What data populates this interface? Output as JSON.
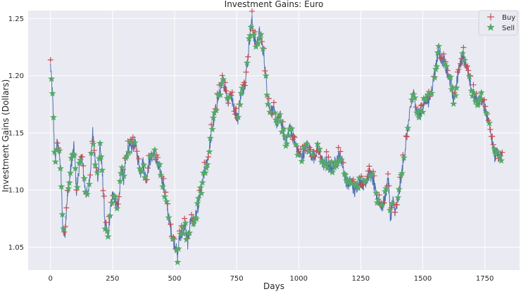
{
  "chart_data": {
    "type": "line",
    "title": "Investment Gains:  Euro",
    "xlabel": "Days",
    "ylabel": "Investment Gains (Dollars)",
    "xlim": [
      -90,
      1890
    ],
    "ylim": [
      1.03,
      1.257
    ],
    "xticks": [
      0,
      250,
      500,
      750,
      1000,
      1250,
      1500,
      1750
    ],
    "xtick_labels": [
      "0",
      "250",
      "500",
      "750",
      "1000",
      "1250",
      "1500",
      "1750"
    ],
    "yticks": [
      1.05,
      1.1,
      1.15,
      1.2,
      1.25
    ],
    "ytick_labels": [
      "1.05",
      "1.10",
      "1.15",
      "1.20",
      "1.25"
    ],
    "grid": true,
    "legend_position": "top-right",
    "colors": {
      "background": "#eaeaf2",
      "grid": "#ffffff",
      "price_line": "#4c72b0",
      "buy": "#c44e52",
      "sell": "#55a868"
    },
    "series": [
      {
        "name": "Buy",
        "marker": "plus"
      },
      {
        "name": "Sell",
        "marker": "star"
      }
    ],
    "price_anchors": [
      [
        0,
        1.209
      ],
      [
        4,
        1.195
      ],
      [
        8,
        1.182
      ],
      [
        12,
        1.16
      ],
      [
        18,
        1.125
      ],
      [
        25,
        1.14
      ],
      [
        32,
        1.138
      ],
      [
        42,
        1.115
      ],
      [
        50,
        1.065
      ],
      [
        58,
        1.06
      ],
      [
        65,
        1.088
      ],
      [
        75,
        1.105
      ],
      [
        85,
        1.125
      ],
      [
        95,
        1.138
      ],
      [
        105,
        1.098
      ],
      [
        115,
        1.12
      ],
      [
        125,
        1.13
      ],
      [
        140,
        1.1
      ],
      [
        150,
        1.095
      ],
      [
        160,
        1.115
      ],
      [
        170,
        1.15
      ],
      [
        180,
        1.125
      ],
      [
        190,
        1.11
      ],
      [
        200,
        1.14
      ],
      [
        210,
        1.11
      ],
      [
        220,
        1.07
      ],
      [
        232,
        1.058
      ],
      [
        240,
        1.08
      ],
      [
        250,
        1.095
      ],
      [
        262,
        1.09
      ],
      [
        275,
        1.088
      ],
      [
        285,
        1.12
      ],
      [
        295,
        1.108
      ],
      [
        305,
        1.13
      ],
      [
        315,
        1.138
      ],
      [
        325,
        1.135
      ],
      [
        340,
        1.142
      ],
      [
        350,
        1.13
      ],
      [
        362,
        1.115
      ],
      [
        372,
        1.125
      ],
      [
        385,
        1.108
      ],
      [
        398,
        1.125
      ],
      [
        410,
        1.13
      ],
      [
        420,
        1.132
      ],
      [
        432,
        1.12
      ],
      [
        445,
        1.115
      ],
      [
        458,
        1.1
      ],
      [
        470,
        1.085
      ],
      [
        482,
        1.068
      ],
      [
        495,
        1.056
      ],
      [
        505,
        1.05
      ],
      [
        512,
        1.042
      ],
      [
        520,
        1.06
      ],
      [
        530,
        1.062
      ],
      [
        542,
        1.07
      ],
      [
        552,
        1.052
      ],
      [
        565,
        1.075
      ],
      [
        578,
        1.072
      ],
      [
        590,
        1.08
      ],
      [
        600,
        1.092
      ],
      [
        612,
        1.105
      ],
      [
        622,
        1.118
      ],
      [
        632,
        1.125
      ],
      [
        642,
        1.14
      ],
      [
        652,
        1.155
      ],
      [
        662,
        1.165
      ],
      [
        672,
        1.178
      ],
      [
        682,
        1.185
      ],
      [
        695,
        1.195
      ],
      [
        705,
        1.19
      ],
      [
        715,
        1.178
      ],
      [
        725,
        1.185
      ],
      [
        735,
        1.175
      ],
      [
        745,
        1.168
      ],
      [
        755,
        1.162
      ],
      [
        765,
        1.182
      ],
      [
        775,
        1.188
      ],
      [
        785,
        1.195
      ],
      [
        795,
        1.215
      ],
      [
        805,
        1.24
      ],
      [
        812,
        1.248
      ],
      [
        822,
        1.23
      ],
      [
        832,
        1.228
      ],
      [
        842,
        1.238
      ],
      [
        850,
        1.23
      ],
      [
        858,
        1.22
      ],
      [
        868,
        1.198
      ],
      [
        878,
        1.175
      ],
      [
        888,
        1.17
      ],
      [
        900,
        1.168
      ],
      [
        912,
        1.158
      ],
      [
        925,
        1.165
      ],
      [
        937,
        1.15
      ],
      [
        950,
        1.142
      ],
      [
        962,
        1.155
      ],
      [
        975,
        1.148
      ],
      [
        988,
        1.138
      ],
      [
        1000,
        1.132
      ],
      [
        1012,
        1.128
      ],
      [
        1025,
        1.135
      ],
      [
        1037,
        1.14
      ],
      [
        1050,
        1.132
      ],
      [
        1062,
        1.128
      ],
      [
        1075,
        1.135
      ],
      [
        1087,
        1.13
      ],
      [
        1100,
        1.122
      ],
      [
        1112,
        1.125
      ],
      [
        1125,
        1.118
      ],
      [
        1137,
        1.12
      ],
      [
        1150,
        1.125
      ],
      [
        1162,
        1.13
      ],
      [
        1175,
        1.125
      ],
      [
        1187,
        1.11
      ],
      [
        1200,
        1.105
      ],
      [
        1212,
        1.108
      ],
      [
        1225,
        1.098
      ],
      [
        1237,
        1.105
      ],
      [
        1250,
        1.108
      ],
      [
        1262,
        1.105
      ],
      [
        1275,
        1.11
      ],
      [
        1287,
        1.115
      ],
      [
        1300,
        1.108
      ],
      [
        1312,
        1.095
      ],
      [
        1325,
        1.09
      ],
      [
        1337,
        1.085
      ],
      [
        1350,
        1.095
      ],
      [
        1360,
        1.112
      ],
      [
        1370,
        1.075
      ],
      [
        1380,
        1.09
      ],
      [
        1390,
        1.08
      ],
      [
        1400,
        1.09
      ],
      [
        1412,
        1.11
      ],
      [
        1425,
        1.13
      ],
      [
        1437,
        1.15
      ],
      [
        1450,
        1.17
      ],
      [
        1462,
        1.185
      ],
      [
        1475,
        1.17
      ],
      [
        1487,
        1.165
      ],
      [
        1500,
        1.172
      ],
      [
        1512,
        1.18
      ],
      [
        1525,
        1.178
      ],
      [
        1537,
        1.19
      ],
      [
        1550,
        1.205
      ],
      [
        1562,
        1.222
      ],
      [
        1575,
        1.215
      ],
      [
        1587,
        1.212
      ],
      [
        1600,
        1.2
      ],
      [
        1612,
        1.195
      ],
      [
        1625,
        1.178
      ],
      [
        1637,
        1.195
      ],
      [
        1650,
        1.21
      ],
      [
        1662,
        1.218
      ],
      [
        1675,
        1.21
      ],
      [
        1687,
        1.195
      ],
      [
        1700,
        1.185
      ],
      [
        1712,
        1.18
      ],
      [
        1725,
        1.178
      ],
      [
        1737,
        1.18
      ],
      [
        1750,
        1.172
      ],
      [
        1762,
        1.162
      ],
      [
        1772,
        1.155
      ],
      [
        1782,
        1.14
      ],
      [
        1790,
        1.128
      ],
      [
        1800,
        1.132
      ],
      [
        1810,
        1.128
      ],
      [
        1820,
        1.13
      ]
    ]
  }
}
